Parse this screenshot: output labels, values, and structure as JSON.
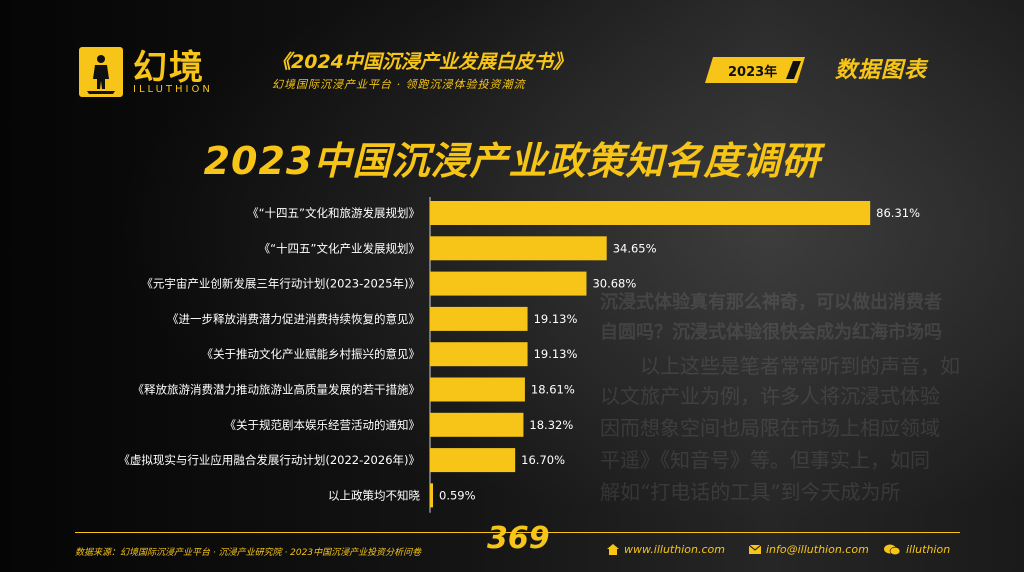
{
  "header": {
    "brand_name": "幻境",
    "brand_en": "ILLUTHION",
    "report_title": "《2024中国沉浸产业发展白皮书》",
    "report_subtitle": "幻境国际沉浸产业平台 · 领跑沉浸体验投资潮流",
    "year_badge": "2023年",
    "section_label": "数据图表"
  },
  "chart_data": {
    "type": "bar",
    "orientation": "horizontal",
    "title": "2023中国沉浸产业政策知名度调研",
    "categories": [
      "《“十四五”文化和旅游发展规划》",
      "《“十四五”文化产业发展规划》",
      "《元宇宙产业创新发展三年行动计划(2023-2025年)》",
      "《进一步释放消费潜力促进消费持续恢复的意见》",
      "《关于推动文化产业赋能乡村振兴的意见》",
      "《释放旅游消费潜力推动旅游业高质量发展的若干措施》",
      "《关于规范剧本娱乐经营活动的通知》",
      "《虚拟现实与行业应用融合发展行动计划(2022-2026年)》",
      "以上政策均不知晓"
    ],
    "values": [
      86.31,
      34.65,
      30.68,
      19.13,
      19.13,
      18.61,
      18.32,
      16.7,
      0.59
    ],
    "labels": [
      "86.31%",
      "34.65%",
      "30.68%",
      "19.13%",
      "19.13%",
      "18.61%",
      "18.32%",
      "16.70%",
      "0.59%"
    ],
    "unit": "%",
    "xlim": [
      0,
      100
    ],
    "grid": false,
    "bar_color": "#f6c518"
  },
  "footer": {
    "source": "数据来源：幻境国际沉浸产业平台 · 沉浸产业研究院 · 2023中国沉浸产业投资分析问卷",
    "page_number": "369",
    "website": "www.illuthion.com",
    "email": "info@illuthion.com",
    "wechat": "illuthion"
  },
  "background": {
    "line1": "沉浸式体验真有那么神奇，可以做出消费者",
    "line2": "自圆吗？沉浸式体验很快会成为红海市场吗",
    "line3": "以上这些是笔者常常听到的声音，如",
    "line4": "以文旅产业为例，许多人将沉浸式体验",
    "line5": "因而想象空间也局限在市场上相应领域",
    "line6": "平遥》《知音号》等。但事实上，如同",
    "line7": "解如“打电话的工具”到今天成为所"
  }
}
